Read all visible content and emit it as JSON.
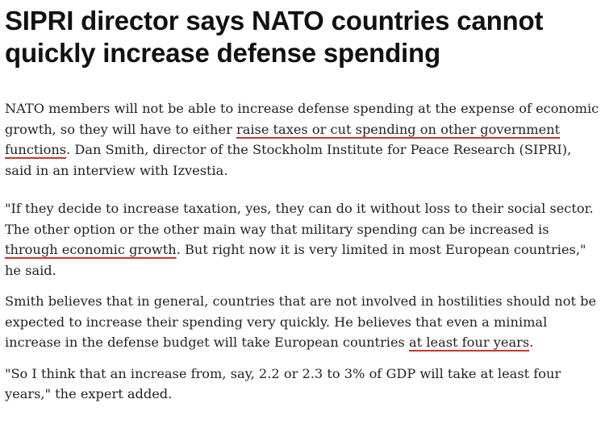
{
  "article": {
    "headline": "SIPRI director says NATO countries cannot quickly increase defense spending",
    "paragraphs": [
      {
        "before": "NATO members will not be able to increase defense spending at the expense of economic growth, so they will have to either ",
        "highlight": "raise taxes or cut spending on other government functions",
        "after": ". Dan Smith, director of the Stockholm Institute for Peace Research (SIPRI), said in an interview with Izvestia."
      },
      {
        "before": "\"If they decide to increase taxation, yes, they can do it without loss to their social sector. The other option or the other main way that military spending can be increased is ",
        "highlight": "through economic growth",
        "after": ". But right now it is very limited in most European countries,\" he said."
      },
      {
        "before": "Smith believes that in general, countries that are not involved in hostilities should not be expected to increase their spending very quickly. He believes that even a minimal increase in the defense budget will take European countries ",
        "highlight": "at least four years",
        "after": "."
      },
      {
        "text": "\"So I think that an increase from, say, 2.2 or 2.3 to 3% of GDP will take at least four years,\" the expert added."
      }
    ]
  },
  "colors": {
    "text": "#222222",
    "headline": "#111111",
    "underline": "#d93025"
  }
}
